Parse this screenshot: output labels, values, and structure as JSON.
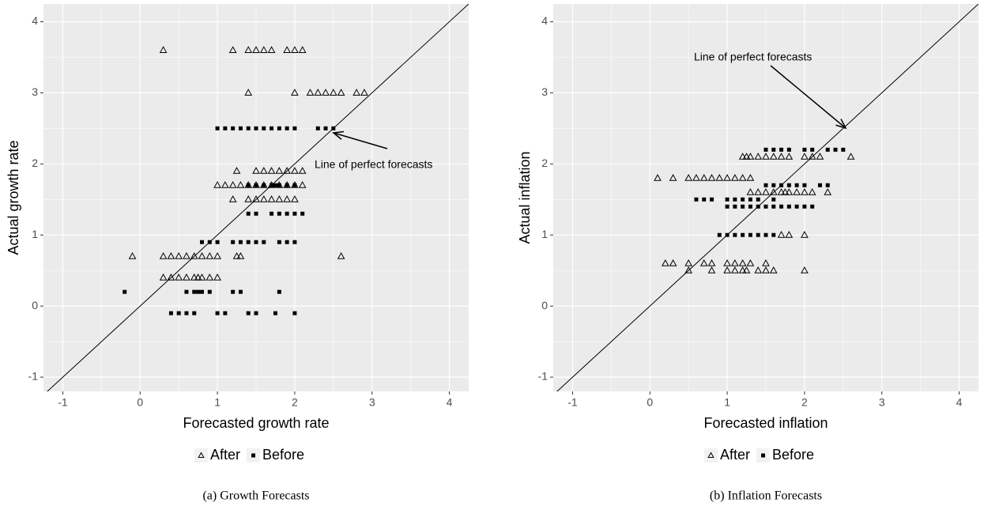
{
  "chart_data": [
    {
      "type": "scatter",
      "caption": "(a) Growth Forecasts",
      "x_label": "Forecasted growth rate",
      "y_label": "Actual growth rate",
      "annotation": "Line of perfect forecasts",
      "grid": true,
      "legend": "bottom",
      "xlim": [
        -1.25,
        4.25
      ],
      "ylim": [
        -1.2,
        4.25
      ],
      "xticks": [
        -1,
        0,
        1,
        2,
        3,
        4
      ],
      "yticks": [
        -1,
        0,
        1,
        2,
        3,
        4
      ],
      "series": [
        {
          "name": "After",
          "color": "#000000",
          "marker": "triangle",
          "x": [
            0.3,
            1.2,
            1.4,
            1.5,
            1.6,
            1.7,
            1.9,
            2.0,
            2.1,
            1.4,
            2.0,
            2.2,
            2.3,
            2.4,
            2.5,
            2.6,
            2.8,
            2.9,
            1.25,
            1.5,
            1.6,
            1.7,
            1.8,
            1.9,
            2.0,
            2.1,
            1.0,
            1.1,
            1.2,
            1.3,
            1.4,
            1.5,
            1.6,
            1.7,
            1.8,
            1.9,
            2.0,
            2.1,
            1.2,
            1.4,
            1.5,
            1.6,
            1.7,
            1.8,
            1.9,
            2.0,
            -0.1,
            0.3,
            0.4,
            0.5,
            0.6,
            0.7,
            0.8,
            0.9,
            1.0,
            1.25,
            1.3,
            2.6,
            0.3,
            0.4,
            0.5,
            0.6,
            0.7,
            0.75,
            0.8,
            0.9,
            1.0
          ],
          "values": [
            3.6,
            3.6,
            3.6,
            3.6,
            3.6,
            3.6,
            3.6,
            3.6,
            3.6,
            3.0,
            3.0,
            3.0,
            3.0,
            3.0,
            3.0,
            3.0,
            3.0,
            3.0,
            1.9,
            1.9,
            1.9,
            1.9,
            1.9,
            1.9,
            1.9,
            1.9,
            1.7,
            1.7,
            1.7,
            1.7,
            1.7,
            1.7,
            1.7,
            1.7,
            1.7,
            1.7,
            1.7,
            1.7,
            1.5,
            1.5,
            1.5,
            1.5,
            1.5,
            1.5,
            1.5,
            1.5,
            0.7,
            0.7,
            0.7,
            0.7,
            0.7,
            0.7,
            0.7,
            0.7,
            0.7,
            0.7,
            0.7,
            0.7,
            0.4,
            0.4,
            0.4,
            0.4,
            0.4,
            0.4,
            0.4,
            0.4,
            0.4
          ]
        },
        {
          "name": "Before",
          "color": "#000000",
          "marker": "square",
          "x": [
            1.0,
            1.1,
            1.2,
            1.3,
            1.4,
            1.5,
            1.6,
            1.7,
            1.8,
            1.9,
            2.0,
            2.3,
            2.4,
            2.5,
            1.4,
            1.5,
            1.6,
            1.7,
            1.75,
            1.8,
            1.9,
            2.0,
            1.4,
            1.5,
            1.7,
            1.8,
            1.9,
            2.0,
            2.1,
            0.8,
            0.9,
            1.0,
            1.2,
            1.3,
            1.4,
            1.5,
            1.6,
            1.8,
            1.9,
            2.0,
            -0.2,
            0.6,
            0.7,
            0.75,
            0.8,
            0.9,
            1.2,
            1.3,
            1.8,
            0.4,
            0.5,
            0.6,
            0.7,
            1.0,
            1.1,
            1.4,
            1.5,
            1.75,
            2.0
          ],
          "values": [
            2.5,
            2.5,
            2.5,
            2.5,
            2.5,
            2.5,
            2.5,
            2.5,
            2.5,
            2.5,
            2.5,
            2.5,
            2.5,
            2.5,
            1.7,
            1.7,
            1.7,
            1.7,
            1.7,
            1.7,
            1.7,
            1.7,
            1.3,
            1.3,
            1.3,
            1.3,
            1.3,
            1.3,
            1.3,
            0.9,
            0.9,
            0.9,
            0.9,
            0.9,
            0.9,
            0.9,
            0.9,
            0.9,
            0.9,
            0.9,
            0.2,
            0.2,
            0.2,
            0.2,
            0.2,
            0.2,
            0.2,
            0.2,
            0.2,
            -0.1,
            -0.1,
            -0.1,
            -0.1,
            -0.1,
            -0.1,
            -0.1,
            -0.1,
            -0.1,
            -0.1
          ]
        }
      ]
    },
    {
      "type": "scatter",
      "caption": "(b) Inflation Forecasts",
      "x_label": "Forecasted inflation",
      "y_label": "Actual inflation",
      "annotation": "Line of perfect forecasts",
      "grid": true,
      "legend": "bottom",
      "xlim": [
        -1.25,
        4.25
      ],
      "ylim": [
        -1.2,
        4.25
      ],
      "xticks": [
        -1,
        0,
        1,
        2,
        3,
        4
      ],
      "yticks": [
        -1,
        0,
        1,
        2,
        3,
        4
      ],
      "series": [
        {
          "name": "After",
          "color": "#000000",
          "marker": "triangle",
          "x": [
            1.2,
            1.25,
            1.3,
            1.4,
            1.5,
            1.6,
            1.7,
            1.8,
            2.0,
            2.1,
            2.2,
            2.6,
            0.1,
            0.3,
            0.5,
            0.6,
            0.7,
            0.8,
            0.9,
            1.0,
            1.1,
            1.2,
            1.3,
            1.3,
            1.4,
            1.5,
            1.6,
            1.7,
            1.75,
            1.8,
            1.9,
            2.0,
            2.1,
            2.3,
            1.7,
            1.8,
            2.0,
            0.2,
            0.3,
            0.5,
            0.7,
            0.8,
            1.0,
            1.1,
            1.2,
            1.3,
            1.5,
            0.5,
            0.8,
            1.0,
            1.1,
            1.2,
            1.25,
            1.4,
            1.5,
            1.6,
            2.0
          ],
          "values": [
            2.1,
            2.1,
            2.1,
            2.1,
            2.1,
            2.1,
            2.1,
            2.1,
            2.1,
            2.1,
            2.1,
            2.1,
            1.8,
            1.8,
            1.8,
            1.8,
            1.8,
            1.8,
            1.8,
            1.8,
            1.8,
            1.8,
            1.8,
            1.6,
            1.6,
            1.6,
            1.6,
            1.6,
            1.6,
            1.6,
            1.6,
            1.6,
            1.6,
            1.6,
            1.0,
            1.0,
            1.0,
            0.6,
            0.6,
            0.6,
            0.6,
            0.6,
            0.6,
            0.6,
            0.6,
            0.6,
            0.6,
            0.5,
            0.5,
            0.5,
            0.5,
            0.5,
            0.5,
            0.5,
            0.5,
            0.5,
            0.5
          ]
        },
        {
          "name": "Before",
          "color": "#000000",
          "marker": "square",
          "x": [
            1.5,
            1.6,
            1.7,
            1.8,
            2.0,
            2.1,
            2.3,
            2.4,
            2.5,
            1.5,
            1.6,
            1.7,
            1.8,
            1.9,
            2.0,
            2.2,
            2.3,
            0.6,
            0.7,
            0.8,
            1.0,
            1.1,
            1.2,
            1.3,
            1.4,
            1.6,
            1.0,
            1.1,
            1.2,
            1.3,
            1.4,
            1.5,
            1.6,
            1.7,
            1.8,
            1.9,
            2.0,
            2.1,
            0.9,
            1.0,
            1.1,
            1.2,
            1.3,
            1.4,
            1.5,
            1.6
          ],
          "values": [
            2.2,
            2.2,
            2.2,
            2.2,
            2.2,
            2.2,
            2.2,
            2.2,
            2.2,
            1.7,
            1.7,
            1.7,
            1.7,
            1.7,
            1.7,
            1.7,
            1.7,
            1.5,
            1.5,
            1.5,
            1.5,
            1.5,
            1.5,
            1.5,
            1.5,
            1.5,
            1.4,
            1.4,
            1.4,
            1.4,
            1.4,
            1.4,
            1.4,
            1.4,
            1.4,
            1.4,
            1.4,
            1.4,
            1.0,
            1.0,
            1.0,
            1.0,
            1.0,
            1.0,
            1.0,
            1.0
          ]
        }
      ]
    }
  ]
}
